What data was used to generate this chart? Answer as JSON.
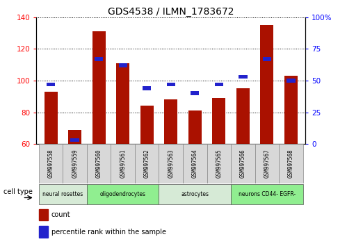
{
  "title": "GDS4538 / ILMN_1783672",
  "samples": [
    "GSM997558",
    "GSM997559",
    "GSM997560",
    "GSM997561",
    "GSM997562",
    "GSM997563",
    "GSM997564",
    "GSM997565",
    "GSM997566",
    "GSM997567",
    "GSM997568"
  ],
  "counts": [
    93,
    69,
    131,
    111,
    84,
    88,
    81,
    89,
    95,
    135,
    103
  ],
  "percentile_ranks": [
    47,
    3,
    67,
    62,
    44,
    47,
    40,
    47,
    53,
    67,
    50
  ],
  "ylim_left": [
    60,
    140
  ],
  "ylim_right": [
    0,
    100
  ],
  "yticks_left": [
    60,
    80,
    100,
    120,
    140
  ],
  "yticks_right": [
    0,
    25,
    50,
    75,
    100
  ],
  "ytick_labels_right": [
    "0",
    "25",
    "50",
    "75",
    "100%"
  ],
  "bar_color": "#aa1100",
  "pct_color": "#2222cc",
  "cell_types": [
    {
      "label": "neural rosettes",
      "span": [
        0,
        2
      ],
      "color": "#d6ead6"
    },
    {
      "label": "oligodendrocytes",
      "span": [
        2,
        5
      ],
      "color": "#90ee90"
    },
    {
      "label": "astrocytes",
      "span": [
        5,
        8
      ],
      "color": "#d6ead6"
    },
    {
      "label": "neurons CD44- EGFR-",
      "span": [
        8,
        11
      ],
      "color": "#90ee90"
    }
  ],
  "legend_count_label": "count",
  "legend_pct_label": "percentile rank within the sample",
  "cell_type_label": "cell type",
  "bar_width": 0.55,
  "title_fontsize": 10
}
